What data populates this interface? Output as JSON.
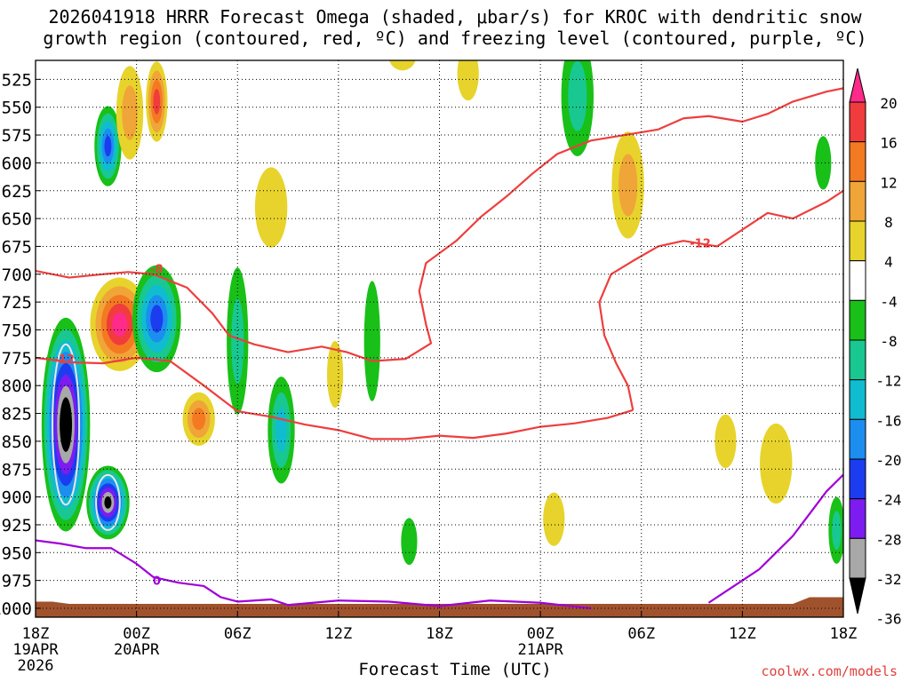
{
  "title_line1": "2026041918 HRRR Forecast Omega (shaded, μbar/s) for KROC with dendritic snow",
  "title_line2": "growth region (contoured, red, ºC) and freezing level (contoured, purple, ºC)",
  "credit": "coolwx.com/models",
  "chart_data": {
    "type": "heatmap",
    "xlabel": "Forecast Time (UTC)",
    "ylabel": "",
    "x_range_hours": [
      0,
      48
    ],
    "y_range_mb": [
      1000,
      500
    ],
    "yticks": [
      "525",
      "550",
      "575",
      "600",
      "625",
      "650",
      "675",
      "700",
      "725",
      "750",
      "775",
      "800",
      "825",
      "850",
      "875",
      "900",
      "925",
      "950",
      "975",
      "1000"
    ],
    "xticks": [
      {
        "h": 0,
        "label": "18Z",
        "date": "19APR",
        "year": "2026"
      },
      {
        "h": 6,
        "label": "00Z",
        "date": "20APR",
        "year": ""
      },
      {
        "h": 12,
        "label": "06Z",
        "date": "",
        "year": ""
      },
      {
        "h": 18,
        "label": "12Z",
        "date": "",
        "year": ""
      },
      {
        "h": 24,
        "label": "18Z",
        "date": "",
        "year": ""
      },
      {
        "h": 30,
        "label": "00Z",
        "date": "21APR",
        "year": ""
      },
      {
        "h": 36,
        "label": "06Z",
        "date": "",
        "year": ""
      },
      {
        "h": 42,
        "label": "12Z",
        "date": "",
        "year": ""
      },
      {
        "h": 48,
        "label": "18Z",
        "date": "",
        "year": ""
      }
    ],
    "colorbar": {
      "labels": [
        "20",
        "16",
        "12",
        "8",
        "4",
        "-4",
        "-8",
        "-12",
        "-16",
        "-20",
        "-24",
        "-28",
        "-32",
        "-36"
      ],
      "colors": [
        "#ff2a8a",
        "#f03c3c",
        "#f47a22",
        "#f0a538",
        "#e7d32c",
        "#ffffff",
        "#18c018",
        "#18c890",
        "#10bcd0",
        "#1c8ef0",
        "#1c3cf0",
        "#7c1cf0",
        "#a8a8a8",
        "#000000"
      ]
    },
    "omega_blobs": [
      {
        "t": 1.8,
        "p": 835,
        "dt": 0.9,
        "dp": 160,
        "v": -38
      },
      {
        "t": 4.3,
        "p": 905,
        "dt": 0.8,
        "dp": 55,
        "v": -34
      },
      {
        "t": 4.3,
        "p": 585,
        "dt": 0.5,
        "dp": 60,
        "v": -22
      },
      {
        "t": 5.0,
        "p": 745,
        "dt": 1.1,
        "dp": 70,
        "v": 21
      },
      {
        "t": 5.6,
        "p": 555,
        "dt": 0.5,
        "dp": 70,
        "v": 8
      },
      {
        "t": 7.2,
        "p": 545,
        "dt": 0.4,
        "dp": 60,
        "v": 17
      },
      {
        "t": 7.2,
        "p": 740,
        "dt": 0.9,
        "dp": 80,
        "v": -22
      },
      {
        "t": 9.7,
        "p": 830,
        "dt": 0.6,
        "dp": 40,
        "v": 14
      },
      {
        "t": 12.0,
        "p": 760,
        "dt": 0.4,
        "dp": 110,
        "v": -8
      },
      {
        "t": 14.6,
        "p": 840,
        "dt": 0.5,
        "dp": 80,
        "v": -14
      },
      {
        "t": 20.0,
        "p": 760,
        "dt": 0.3,
        "dp": 90,
        "v": -6
      },
      {
        "t": 17.8,
        "p": 790,
        "dt": 0.3,
        "dp": 50,
        "v": 6
      },
      {
        "t": 21.8,
        "p": 505,
        "dt": 0.5,
        "dp": 20,
        "v": 6
      },
      {
        "t": 32.2,
        "p": 540,
        "dt": 0.6,
        "dp": 90,
        "v": -8
      },
      {
        "t": 35.2,
        "p": 620,
        "dt": 0.6,
        "dp": 80,
        "v": 10
      },
      {
        "t": 14.0,
        "p": 640,
        "dt": 0.6,
        "dp": 60,
        "v": 6
      },
      {
        "t": 22.2,
        "p": 940,
        "dt": 0.3,
        "dp": 35,
        "v": -6
      },
      {
        "t": 30.8,
        "p": 920,
        "dt": 0.4,
        "dp": 40,
        "v": 5
      },
      {
        "t": 46.8,
        "p": 600,
        "dt": 0.3,
        "dp": 40,
        "v": -6
      },
      {
        "t": 47.6,
        "p": 930,
        "dt": 0.3,
        "dp": 50,
        "v": -10
      },
      {
        "t": 41.0,
        "p": 850,
        "dt": 0.4,
        "dp": 40,
        "v": 5
      },
      {
        "t": 44.0,
        "p": 870,
        "dt": 0.6,
        "dp": 60,
        "v": 6
      },
      {
        "t": 25.7,
        "p": 520,
        "dt": 0.4,
        "dp": 40,
        "v": 6
      }
    ],
    "contours": [
      {
        "label": "-8",
        "color": "#ee3e3e",
        "label_at": [
          7.2,
          695
        ],
        "points": [
          [
            0,
            697
          ],
          [
            2,
            703
          ],
          [
            4,
            700
          ],
          [
            5.5,
            698
          ],
          [
            7,
            700
          ],
          [
            9,
            712
          ],
          [
            10.5,
            735
          ],
          [
            11.5,
            755
          ],
          [
            13,
            763
          ],
          [
            15,
            770
          ],
          [
            17,
            765
          ],
          [
            18.5,
            770
          ],
          [
            20,
            778
          ],
          [
            22,
            776
          ],
          [
            23.5,
            762
          ],
          [
            23.2,
            745
          ],
          [
            22.8,
            715
          ],
          [
            23.2,
            690
          ],
          [
            25,
            670
          ],
          [
            26.5,
            648
          ],
          [
            28,
            630
          ],
          [
            29.5,
            610
          ],
          [
            31,
            592
          ],
          [
            33,
            580
          ],
          [
            35,
            575
          ],
          [
            37,
            570
          ],
          [
            38.5,
            560
          ],
          [
            40,
            558
          ],
          [
            42,
            563
          ],
          [
            43.5,
            556
          ],
          [
            45,
            545
          ],
          [
            47,
            536
          ],
          [
            48,
            533
          ]
        ]
      },
      {
        "label": "-12",
        "color": "#ee3e3e",
        "label_at": [
          1.7,
          776
        ],
        "points": [
          [
            0,
            775
          ],
          [
            2,
            779
          ],
          [
            4,
            780
          ],
          [
            6,
            775
          ],
          [
            8,
            778
          ],
          [
            10,
            800
          ],
          [
            12,
            823
          ],
          [
            14,
            828
          ],
          [
            16,
            835
          ],
          [
            18,
            840
          ],
          [
            20,
            848
          ],
          [
            22,
            848
          ],
          [
            24,
            845
          ],
          [
            26,
            847
          ],
          [
            28,
            843
          ],
          [
            30,
            837
          ],
          [
            32,
            834
          ],
          [
            34,
            829
          ],
          [
            35.5,
            822
          ]
        ]
      },
      {
        "label": "-12",
        "color": "#ee3e3e",
        "label_at": [
          11,
          834
        ],
        "points": [
          [
            35.5,
            822
          ],
          [
            35.2,
            800
          ],
          [
            34.5,
            780
          ],
          [
            33.8,
            755
          ],
          [
            33.5,
            725
          ],
          [
            34.2,
            700
          ],
          [
            35.5,
            688
          ],
          [
            37,
            675
          ],
          [
            38.5,
            670
          ],
          [
            40.5,
            675
          ],
          [
            42,
            660
          ],
          [
            43.5,
            645
          ],
          [
            45,
            650
          ],
          [
            47,
            635
          ],
          [
            48,
            625
          ]
        ]
      },
      {
        "label": "0",
        "color": "#a000d8",
        "label_at": [
          7.2,
          975
        ],
        "points": [
          [
            0,
            939
          ],
          [
            1.5,
            942
          ],
          [
            3,
            946
          ],
          [
            4.5,
            946
          ],
          [
            6,
            960
          ],
          [
            7,
            972
          ],
          [
            8.5,
            977
          ],
          [
            10,
            980
          ],
          [
            11,
            990
          ],
          [
            12,
            994
          ],
          [
            14,
            992
          ],
          [
            15,
            997
          ],
          [
            18,
            993
          ],
          [
            21,
            994
          ],
          [
            24,
            998
          ],
          [
            27,
            993
          ],
          [
            30,
            995
          ],
          [
            33,
            1000
          ]
        ]
      },
      {
        "label": "",
        "color": "#a000d8",
        "label_at": [],
        "points": [
          [
            40,
            995
          ],
          [
            41,
            985
          ],
          [
            42,
            975
          ],
          [
            43,
            965
          ],
          [
            44,
            950
          ],
          [
            45,
            935
          ],
          [
            46,
            915
          ],
          [
            47,
            895
          ],
          [
            48,
            880
          ]
        ]
      }
    ],
    "ground_color": "#a0522d"
  }
}
